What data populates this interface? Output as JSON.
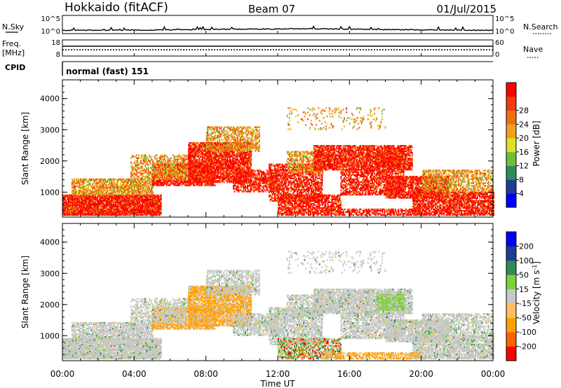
{
  "header": {
    "station": "Hokkaido (fitACF)",
    "beam": "Beam 07",
    "date": "01/Jul/2015"
  },
  "top_panels": {
    "nsky_label": "N.Sky",
    "nsky_ticks": [
      "10^5",
      "10^0"
    ],
    "nsearch_label": "N.Search",
    "freq_label_1": "Freq.",
    "freq_label_2": "[MHz]",
    "freq_ticks": [
      "18",
      "8"
    ],
    "nave_ticks": [
      "60",
      "0"
    ],
    "nave_label": "Nave",
    "cpid_label": "CPID",
    "cpid_value": "normal (fast) 151"
  },
  "chart_data": [
    {
      "type": "heatmap",
      "name": "power",
      "ylabel": "Slant Range [km]",
      "xlabel": "",
      "y_ticks": [
        "1000",
        "2000",
        "3000",
        "4000"
      ],
      "x_ticks": [
        "00:00",
        "04:00",
        "08:00",
        "12:00",
        "16:00",
        "20:00",
        "00:00"
      ],
      "ylim": [
        200,
        4600
      ],
      "xlim_hours": [
        0,
        24
      ],
      "colorbar": {
        "label": "Power [dB]",
        "ticks": [
          "4",
          "8",
          "12",
          "16",
          "20",
          "24",
          "28"
        ],
        "colors": [
          "#0000ff",
          "#1e3c96",
          "#2e8b57",
          "#6bbf3a",
          "#e0e020",
          "#f0a020",
          "#f07010",
          "#f03a10",
          "#ff0000"
        ]
      }
    },
    {
      "type": "heatmap",
      "name": "velocity",
      "ylabel": "Slant Range [km]",
      "xlabel": "Time UT",
      "y_ticks": [
        "1000",
        "2000",
        "3000",
        "4000"
      ],
      "x_ticks": [
        "00:00",
        "04:00",
        "08:00",
        "12:00",
        "16:00",
        "20:00",
        "00:00"
      ],
      "ylim": [
        200,
        4600
      ],
      "xlim_hours": [
        0,
        24
      ],
      "colorbar": {
        "label_main": "Velocity [m s",
        "label_sup": "-1",
        "label_end": "]",
        "ticks": [
          "-200",
          "-100",
          "-50",
          "-15",
          "15",
          "50",
          "100",
          "200"
        ],
        "colors": [
          "#ff0000",
          "#ff6000",
          "#ffa000",
          "#ffc060",
          "#c8c8c8",
          "#7ed03a",
          "#2e8b57",
          "#1e3c96",
          "#0000ff"
        ]
      }
    }
  ]
}
